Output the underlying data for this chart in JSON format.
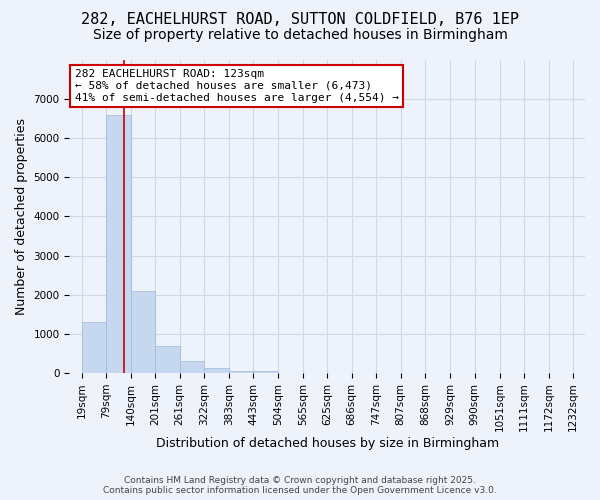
{
  "title_line1": "282, EACHELHURST ROAD, SUTTON COLDFIELD, B76 1EP",
  "title_line2": "Size of property relative to detached houses in Birmingham",
  "xlabel": "Distribution of detached houses by size in Birmingham",
  "ylabel": "Number of detached properties",
  "bar_values": [
    1300,
    6600,
    2100,
    700,
    300,
    130,
    60,
    60,
    0,
    0,
    0,
    0,
    0,
    0,
    0,
    0,
    0,
    0,
    0,
    0
  ],
  "bin_edges": [
    19,
    79,
    140,
    201,
    261,
    322,
    383,
    443,
    504,
    565,
    625,
    686,
    747,
    807,
    868,
    929,
    990,
    1051,
    1111,
    1172,
    1232
  ],
  "tick_labels": [
    "19sqm",
    "79sqm",
    "140sqm",
    "201sqm",
    "261sqm",
    "322sqm",
    "383sqm",
    "443sqm",
    "504sqm",
    "565sqm",
    "625sqm",
    "686sqm",
    "747sqm",
    "807sqm",
    "868sqm",
    "929sqm",
    "990sqm",
    "1051sqm",
    "1111sqm",
    "1172sqm",
    "1232sqm"
  ],
  "bar_color": "#c5d8f0",
  "bar_edge_color": "#a0b8d8",
  "grid_color": "#d0d8e8",
  "bg_color": "#eef2fa",
  "vline_x": 123,
  "vline_color": "#cc0000",
  "annotation_title": "282 EACHELHURST ROAD: 123sqm",
  "annotation_line1": "← 58% of detached houses are smaller (6,473)",
  "annotation_line2": "41% of semi-detached houses are larger (4,554) →",
  "annotation_box_color": "#ffffff",
  "annotation_box_edge": "#cc0000",
  "ylim": [
    0,
    8000
  ],
  "yticks": [
    0,
    1000,
    2000,
    3000,
    4000,
    5000,
    6000,
    7000
  ],
  "footer_line1": "Contains HM Land Registry data © Crown copyright and database right 2025.",
  "footer_line2": "Contains public sector information licensed under the Open Government Licence v3.0.",
  "title_fontsize": 11,
  "subtitle_fontsize": 10,
  "axis_label_fontsize": 9,
  "tick_fontsize": 7.5,
  "annotation_fontsize": 8,
  "footer_fontsize": 6.5
}
